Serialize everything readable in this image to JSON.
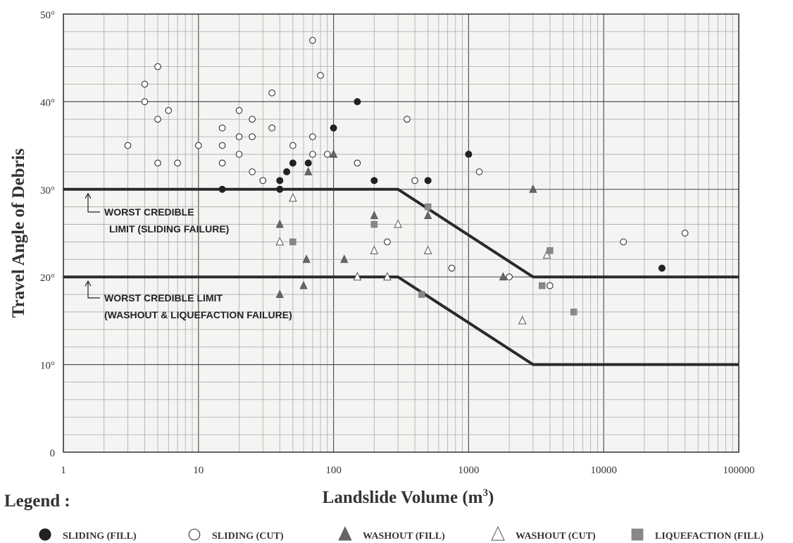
{
  "chart_data": {
    "type": "scatter",
    "xscale": "log",
    "xlim": [
      1,
      100000
    ],
    "ylim": [
      0,
      50
    ],
    "grid": true,
    "xlabel": "Landslide Volume (m³)",
    "ylabel": "Travel Angle of Debris",
    "x_ticks": [
      "1",
      "10",
      "100",
      "1000",
      "10000",
      "100000"
    ],
    "y_ticks": [
      {
        "value": 0,
        "label": "0"
      },
      {
        "value": 10,
        "label": "10°"
      },
      {
        "value": 20,
        "label": "20°"
      },
      {
        "value": 30,
        "label": "30°"
      },
      {
        "value": 40,
        "label": "40°"
      },
      {
        "value": 50,
        "label": "50°"
      }
    ],
    "series": [
      {
        "name": "SLIDING (FILL)",
        "marker": "circle-filled",
        "points": [
          [
            15,
            30
          ],
          [
            40,
            31
          ],
          [
            40,
            30
          ],
          [
            45,
            32
          ],
          [
            50,
            33
          ],
          [
            65,
            33
          ],
          [
            100,
            37
          ],
          [
            150,
            40
          ],
          [
            200,
            31
          ],
          [
            500,
            31
          ],
          [
            1000,
            34
          ],
          [
            27000,
            21
          ]
        ]
      },
      {
        "name": "SLIDING (CUT)",
        "marker": "circle-open",
        "points": [
          [
            3,
            35
          ],
          [
            4,
            42
          ],
          [
            4,
            40
          ],
          [
            5,
            44
          ],
          [
            5,
            38
          ],
          [
            5,
            33
          ],
          [
            6,
            39
          ],
          [
            7,
            33
          ],
          [
            10,
            35
          ],
          [
            15,
            37
          ],
          [
            15,
            35
          ],
          [
            15,
            33
          ],
          [
            20,
            39
          ],
          [
            20,
            36
          ],
          [
            20,
            34
          ],
          [
            25,
            38
          ],
          [
            25,
            36
          ],
          [
            25,
            32
          ],
          [
            30,
            31
          ],
          [
            35,
            41
          ],
          [
            35,
            37
          ],
          [
            50,
            35
          ],
          [
            70,
            47
          ],
          [
            70,
            36
          ],
          [
            70,
            34
          ],
          [
            80,
            43
          ],
          [
            90,
            34
          ],
          [
            150,
            33
          ],
          [
            250,
            24
          ],
          [
            350,
            38
          ],
          [
            400,
            31
          ],
          [
            750,
            21
          ],
          [
            1200,
            32
          ],
          [
            2000,
            20
          ],
          [
            4000,
            19
          ],
          [
            14000,
            24
          ],
          [
            40000,
            25
          ]
        ]
      },
      {
        "name": "WASHOUT (FILL)",
        "marker": "triangle-filled",
        "points": [
          [
            40,
            26
          ],
          [
            40,
            18
          ],
          [
            60,
            19
          ],
          [
            63,
            22
          ],
          [
            65,
            32
          ],
          [
            100,
            34
          ],
          [
            120,
            22
          ],
          [
            200,
            27
          ],
          [
            500,
            27
          ],
          [
            1800,
            20
          ],
          [
            3000,
            30
          ]
        ]
      },
      {
        "name": "WASHOUT (CUT)",
        "marker": "triangle-open",
        "points": [
          [
            40,
            24
          ],
          [
            50,
            29
          ],
          [
            150,
            20
          ],
          [
            200,
            23
          ],
          [
            250,
            20
          ],
          [
            300,
            26
          ],
          [
            500,
            23
          ],
          [
            2500,
            15
          ],
          [
            3800,
            22.5
          ]
        ]
      },
      {
        "name": "LIQUEFACTION (FILL)",
        "marker": "square-filled",
        "points": [
          [
            50,
            24
          ],
          [
            200,
            26
          ],
          [
            450,
            18
          ],
          [
            500,
            28
          ],
          [
            3500,
            19
          ],
          [
            4000,
            23
          ],
          [
            6000,
            16
          ]
        ]
      }
    ],
    "limit_lines": [
      {
        "label_lines": [
          "WORST CREDIBLE",
          "LIMIT (SLIDING FAILURE)"
        ],
        "points": [
          [
            1,
            30
          ],
          [
            300,
            30
          ],
          [
            3000,
            20
          ],
          [
            100000,
            20
          ]
        ]
      },
      {
        "label_lines": [
          "WORST CREDIBLE LIMIT",
          "(WASHOUT & LIQUEFACTION FAILURE)"
        ],
        "points": [
          [
            1,
            20
          ],
          [
            300,
            20
          ],
          [
            3000,
            10
          ],
          [
            100000,
            10
          ]
        ]
      }
    ],
    "legend_title": "Legend :",
    "legend_placement": "bottom"
  }
}
